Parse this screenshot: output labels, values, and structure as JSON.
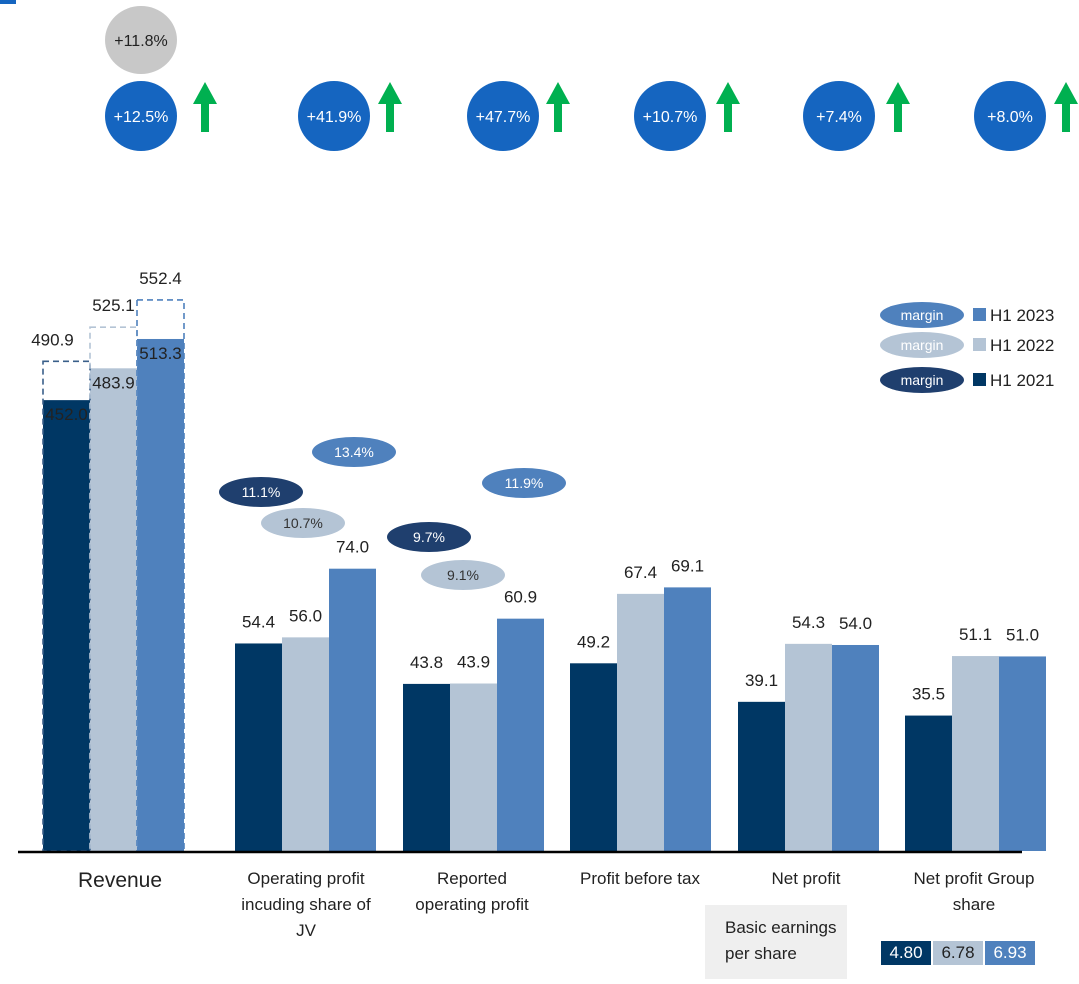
{
  "chart_data": {
    "type": "bar",
    "categories": [
      "Revenue",
      "Operating profit incuding share of JV",
      "Reported operating profit",
      "Profit before tax",
      "Net profit",
      "Net profit Group share"
    ],
    "series": [
      {
        "name": "H1 2021",
        "color": "#003764",
        "values": [
          452.0,
          54.4,
          43.8,
          49.2,
          39.1,
          35.5
        ]
      },
      {
        "name": "H1 2022",
        "color": "#b4c4d5",
        "values": [
          483.9,
          56.0,
          43.9,
          67.4,
          54.3,
          51.1
        ]
      },
      {
        "name": "H1 2023",
        "color": "#4f81bd",
        "values": [
          513.3,
          74.0,
          60.9,
          69.1,
          54.0,
          51.0
        ]
      }
    ],
    "value_labels": [
      [
        "452.0",
        "54.4",
        "43.8",
        "49.2",
        "39.1",
        "35.5"
      ],
      [
        "483.9",
        "56.0",
        "43.9",
        "67.4",
        "54.3",
        "51.1"
      ],
      [
        "513.3",
        "74.0",
        "60.9",
        "69.1",
        "54.0",
        "51.0"
      ]
    ],
    "category_labels": [
      [
        "Revenue"
      ],
      [
        "Operating profit",
        "incuding share of",
        "JV"
      ],
      [
        "Reported",
        "operating profit"
      ],
      [
        "Profit before tax"
      ],
      [
        "Net profit"
      ],
      [
        "Net profit Group",
        "share"
      ]
    ],
    "revenue_totals": [
      {
        "value": 490.9,
        "label": "490.9"
      },
      {
        "value": 525.1,
        "label": "525.1"
      },
      {
        "value": 552.4,
        "label": "552.4"
      }
    ],
    "growth_badges": [
      {
        "label": "+12.5%",
        "color": "#1565c0"
      },
      {
        "label": "+41.9%",
        "color": "#1565c0"
      },
      {
        "label": "+47.7%",
        "color": "#1565c0"
      },
      {
        "label": "+10.7%",
        "color": "#1565c0"
      },
      {
        "label": "+7.4%",
        "color": "#1565c0"
      },
      {
        "label": "+8.0%",
        "color": "#1565c0"
      }
    ],
    "revenue_total_growth": {
      "label": "+11.8%",
      "color": "#c8c8c8"
    },
    "arrow_color": "#00b050",
    "margins": [
      {
        "category": "Operating profit incuding share of JV",
        "series": "H1 2021",
        "label": "11.1%"
      },
      {
        "category": "Operating profit incuding share of JV",
        "series": "H1 2022",
        "label": "10.7%"
      },
      {
        "category": "Operating profit incuding share of JV",
        "series": "H1 2023",
        "label": "13.4%"
      },
      {
        "category": "Reported operating profit",
        "series": "H1 2021",
        "label": "9.7%"
      },
      {
        "category": "Reported operating profit",
        "series": "H1 2022",
        "label": "9.1%"
      },
      {
        "category": "Reported operating profit",
        "series": "H1 2023",
        "label": "11.9%"
      }
    ],
    "legend": {
      "position": "right",
      "margin_label": "margin",
      "items": [
        {
          "name": "H1 2023",
          "color": "#4f81bd"
        },
        {
          "name": "H1 2022",
          "color": "#b4c4d5"
        },
        {
          "name": "H1 2021",
          "color": "#003764"
        }
      ]
    },
    "grid": false
  },
  "eps": {
    "label_line1": "Basic earnings",
    "label_line2": "per share",
    "values": [
      {
        "label": "4.80",
        "color": "#003764"
      },
      {
        "label": "6.78",
        "color": "#b4c4d5"
      },
      {
        "label": "6.93",
        "color": "#4f81bd"
      }
    ]
  }
}
